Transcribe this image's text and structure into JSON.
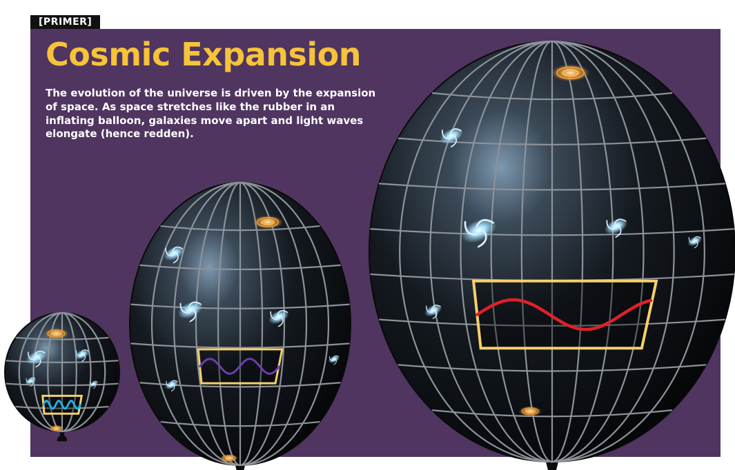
{
  "header": {
    "tag": "[PRIMER]",
    "title": "Cosmic Expansion",
    "intro": "The evolution of the universe is driven by the expansion of space. As space stretches like the rubber in an inflating balloon, galaxies move apart and light waves elongate (hence redden)."
  },
  "colors": {
    "background_panel": "#4f3560",
    "title": "#f6c33a",
    "wave_box": "#f6d06a",
    "wave_small": "#1fb0e8",
    "wave_medium": "#6a3fb0",
    "wave_large": "#e0202a"
  },
  "balloons": [
    {
      "name": "small",
      "wave_color": "#1fb0e8",
      "wave_cycles": 3
    },
    {
      "name": "medium",
      "wave_color": "#6a3fb0",
      "wave_cycles": 2
    },
    {
      "name": "large",
      "wave_color": "#e0202a",
      "wave_cycles": 1.2
    }
  ]
}
